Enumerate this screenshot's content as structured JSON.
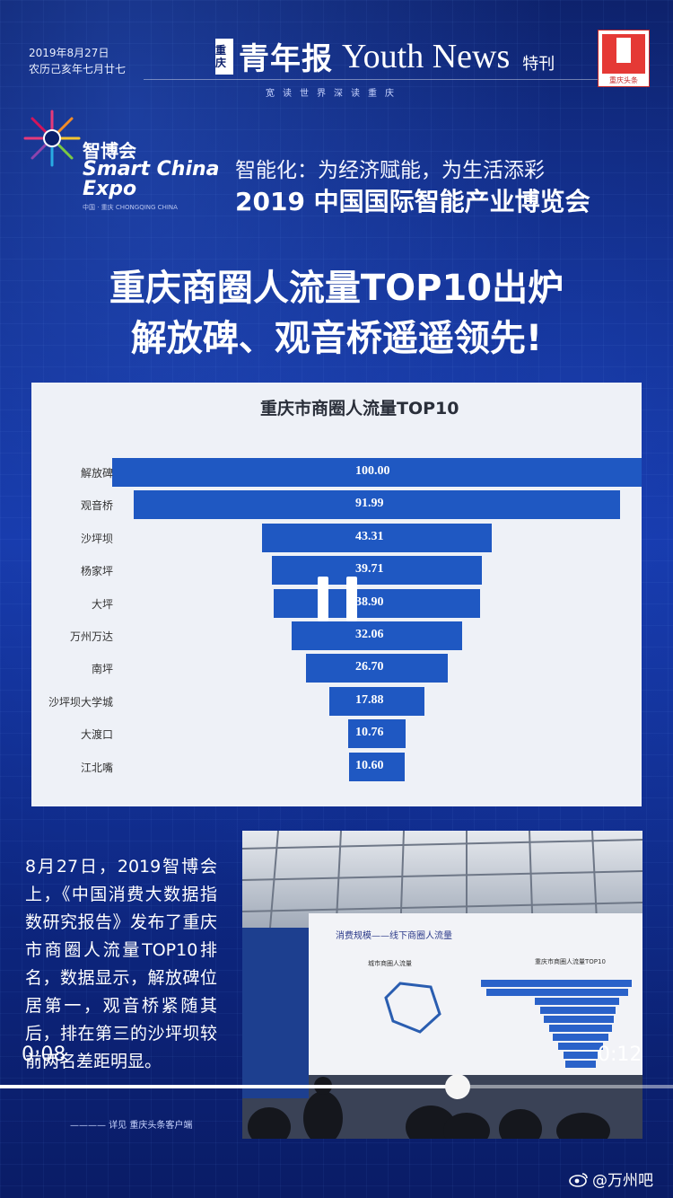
{
  "header": {
    "date_line1": "2019年8月27日",
    "date_line2": "农历己亥年七月廿七",
    "logo_cn_small": "重庆",
    "logo_cn": "青年报",
    "logo_en": "Youth News",
    "special": "特刊",
    "tagline": "宽读世界深读重庆",
    "emblem_label": "重庆头条"
  },
  "expo": {
    "cn": "智博会",
    "en_line1": "Smart China",
    "en_line2": "Expo",
    "sub": "中国 · 重庆  CHONGQING CHINA",
    "slogan": "智能化：为经济赋能，为生活添彩",
    "title": "2019 中国国际智能产业博览会"
  },
  "headline": {
    "line1": "重庆商圈人流量TOP10出炉",
    "line2": "解放碑、观音桥遥遥领先!"
  },
  "chart_data": {
    "type": "bar",
    "title": "重庆市商圈人流量TOP10",
    "categories": [
      "解放碑",
      "观音桥",
      "沙坪坝",
      "杨家坪",
      "大坪",
      "万州万达",
      "南坪",
      "沙坪坝大学城",
      "大渡口",
      "江北嘴"
    ],
    "values": [
      100.0,
      91.99,
      43.31,
      39.71,
      38.9,
      32.06,
      26.7,
      17.88,
      10.76,
      10.6
    ],
    "value_labels": [
      "100.00",
      "91.99",
      "43.31",
      "39.71",
      "38.90",
      "32.06",
      "26.70",
      "17.88",
      "10.76",
      "10.60"
    ],
    "color": "#1f58c2"
  },
  "description": "8月27日，2019智博会上，《中国消费大数据指数研究报告》发布了重庆市商圈人流量TOP10排名，数据显示，解放碑位居第一，观音桥紧随其后，排在第三的沙坪坝较前两名差距明显。",
  "credit": "———— 详见 重庆头条客户端",
  "photo": {
    "screen_title": "消费规模——线下商圈人流量",
    "left_chart_title": "城市商圈人流量",
    "right_chart_title": "重庆市商圈人流量TOP10"
  },
  "video": {
    "current_time": "0:08",
    "total_time": "0:12",
    "progress": 0.68
  },
  "watermark": "@万州吧",
  "colors": {
    "background": "#0b1f6b",
    "bar": "#1f58c2",
    "panel": "#eef1f7"
  }
}
